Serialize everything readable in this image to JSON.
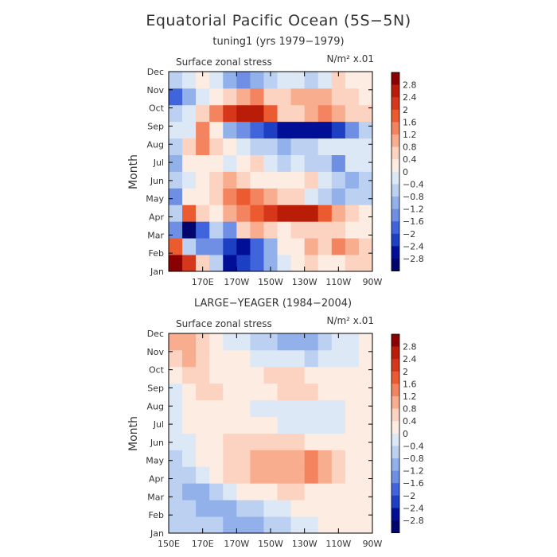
{
  "figure": {
    "title": "Equatorial Pacific Ocean (5S−5N)"
  },
  "colorbar": {
    "labels": [
      "2.8",
      "2.4",
      "2",
      "1.6",
      "1.2",
      "0.8",
      "0.4",
      "0",
      "−0.4",
      "−0.8",
      "−1.2",
      "−1.6",
      "−2",
      "−2.4",
      "−2.8"
    ],
    "colors": [
      "#8b0000",
      "#b91d08",
      "#d6361a",
      "#ec5b30",
      "#f4845f",
      "#f8ad8f",
      "#fbd3c0",
      "#fdece2",
      "#dde8f7",
      "#bcd0f1",
      "#92b1ea",
      "#6e8fe3",
      "#3f64dc",
      "#1c3fc4",
      "#000f96",
      "#00056e"
    ]
  },
  "chart_data": [
    {
      "type": "heatmap",
      "subtitle": "tuning1 (yrs 1979−1979)",
      "variable_label": "Surface zonal stress",
      "units_label": "N/m² x.01",
      "ylabel": "Month",
      "y_categories": [
        "Jan",
        "Feb",
        "Mar",
        "Apr",
        "May",
        "Jun",
        "Jul",
        "Aug",
        "Sep",
        "Oct",
        "Nov",
        "Dec"
      ],
      "x_ticks": [
        "",
        "170E",
        "170W",
        "150W",
        "130W",
        "110W",
        "90W"
      ],
      "x_range": [
        "150E",
        "90W"
      ],
      "values": [
        [
          2.9,
          2.2,
          0.6,
          -0.8,
          -2.6,
          -2.4,
          -1.9,
          -0.9,
          -0.4,
          0.2,
          0.4,
          0.2,
          0.3,
          0.4,
          0.4
        ],
        [
          1.6,
          -0.6,
          -1.4,
          -1.2,
          -2.4,
          -2.5,
          -1.6,
          -0.9,
          0.1,
          0.3,
          0.8,
          0.4,
          1.2,
          0.8,
          0.4
        ],
        [
          -1.5,
          -3.0,
          -1.6,
          -0.6,
          -1.3,
          0.5,
          1.1,
          0.5,
          0.2,
          0.5,
          0.6,
          0.6,
          0.4,
          0.3,
          0.3
        ],
        [
          -0.6,
          1.6,
          0.4,
          0.3,
          0.9,
          1.5,
          1.8,
          2.0,
          2.6,
          2.6,
          2.5,
          1.8,
          0.8,
          0.5,
          0.2
        ],
        [
          -1.4,
          0.2,
          0.1,
          0.6,
          1.4,
          1.6,
          1.4,
          0.9,
          0.5,
          0.4,
          -0.2,
          -0.6,
          -0.9,
          -0.6,
          -0.5
        ],
        [
          -0.5,
          -0.2,
          0.1,
          0.6,
          1.0,
          0.6,
          0.2,
          0.3,
          0.2,
          0.2,
          0.4,
          -0.1,
          -0.8,
          -1.1,
          -0.5
        ],
        [
          -0.9,
          0.2,
          0.3,
          0.2,
          -0.2,
          0.2,
          0.4,
          -0.1,
          -0.6,
          -0.2,
          -0.7,
          -0.6,
          -1.3,
          -0.4,
          -0.2
        ],
        [
          -0.6,
          0.5,
          1.2,
          0.6,
          0.3,
          -0.4,
          -0.8,
          -0.8,
          -1.0,
          -0.8,
          -0.6,
          -0.4,
          -0.4,
          -0.3,
          -0.2
        ],
        [
          -0.4,
          -0.2,
          1.2,
          0.2,
          -1.0,
          -1.3,
          -2.0,
          -2.1,
          -2.5,
          -2.6,
          -2.5,
          -2.8,
          -2.2,
          -1.4,
          -0.6
        ],
        [
          -0.8,
          -0.2,
          0.6,
          1.3,
          2.1,
          2.6,
          2.7,
          1.8,
          0.5,
          0.6,
          1.0,
          1.2,
          1.0,
          0.7,
          0.4
        ],
        [
          -1.6,
          -1.0,
          -0.3,
          0.2,
          0.5,
          0.8,
          1.2,
          0.6,
          0.4,
          0.8,
          1.0,
          0.8,
          0.6,
          0.4,
          0.3
        ],
        [
          -0.6,
          -0.1,
          0.3,
          -0.4,
          -0.9,
          -1.2,
          -0.9,
          -0.6,
          -0.3,
          -0.3,
          -0.5,
          -0.2,
          0.4,
          0.2,
          0.1
        ]
      ]
    },
    {
      "type": "heatmap",
      "subtitle": "LARGE−YEAGER (1984−2004)",
      "variable_label": "Surface zonal stress",
      "units_label": "N/m² x.01",
      "ylabel": "Month",
      "y_categories": [
        "Jan",
        "Feb",
        "Mar",
        "Apr",
        "May",
        "Jun",
        "Jul",
        "Aug",
        "Sep",
        "Oct",
        "Nov",
        "Dec"
      ],
      "x_ticks": [
        "150E",
        "170E",
        "170W",
        "150W",
        "130W",
        "110W",
        "90W"
      ],
      "x_range": [
        "150E",
        "90W"
      ],
      "values": [
        [
          -0.5,
          -0.6,
          -0.7,
          -0.8,
          -0.9,
          -1.1,
          -0.9,
          -0.7,
          -0.5,
          -0.4,
          -0.2,
          0.0,
          0.1,
          0.0,
          0.0
        ],
        [
          -0.6,
          -0.8,
          -1.0,
          -1.0,
          -0.9,
          -0.7,
          -0.5,
          -0.3,
          -0.1,
          0.1,
          0.1,
          0.1,
          0.0,
          0.0,
          0.0
        ],
        [
          -0.7,
          -0.9,
          -0.9,
          -0.6,
          -0.3,
          0.0,
          0.2,
          0.3,
          0.4,
          0.4,
          0.3,
          0.3,
          0.1,
          0.0,
          0.0
        ],
        [
          -0.6,
          -0.5,
          -0.2,
          0.2,
          0.4,
          0.6,
          0.8,
          0.9,
          1.0,
          1.1,
          1.3,
          1.0,
          0.7,
          0.3,
          0.0
        ],
        [
          -0.5,
          -0.3,
          0.0,
          0.3,
          0.5,
          0.7,
          0.8,
          0.8,
          0.9,
          1.0,
          1.2,
          1.0,
          0.6,
          0.2,
          0.0
        ],
        [
          -0.4,
          -0.1,
          0.1,
          0.3,
          0.4,
          0.5,
          0.5,
          0.5,
          0.4,
          0.4,
          0.3,
          0.2,
          0.1,
          0.0,
          0.0
        ],
        [
          -0.2,
          0.1,
          0.2,
          0.2,
          0.2,
          0.1,
          0.0,
          0.0,
          -0.1,
          -0.1,
          -0.2,
          -0.2,
          -0.1,
          0.0,
          0.0
        ],
        [
          -0.1,
          0.2,
          0.3,
          0.3,
          0.2,
          0.1,
          -0.1,
          -0.2,
          -0.3,
          -0.3,
          -0.4,
          -0.3,
          -0.2,
          0.0,
          0.0
        ],
        [
          -0.3,
          0.3,
          0.4,
          0.4,
          0.3,
          0.2,
          0.2,
          0.3,
          0.4,
          0.6,
          0.4,
          0.2,
          0.0,
          0.0,
          0.0
        ],
        [
          0.0,
          0.4,
          0.5,
          0.3,
          0.2,
          0.2,
          0.3,
          0.4,
          0.5,
          0.5,
          0.3,
          0.1,
          0.0,
          0.0,
          0.0
        ],
        [
          0.6,
          0.8,
          0.5,
          0.3,
          0.1,
          0.0,
          -0.1,
          -0.2,
          -0.3,
          -0.4,
          -0.5,
          -0.4,
          -0.3,
          -0.1,
          0.0
        ],
        [
          1.1,
          1.0,
          0.5,
          0.2,
          -0.1,
          -0.3,
          -0.5,
          -0.7,
          -0.9,
          -1.0,
          -0.9,
          -0.6,
          -0.3,
          -0.1,
          0.0
        ]
      ]
    }
  ]
}
